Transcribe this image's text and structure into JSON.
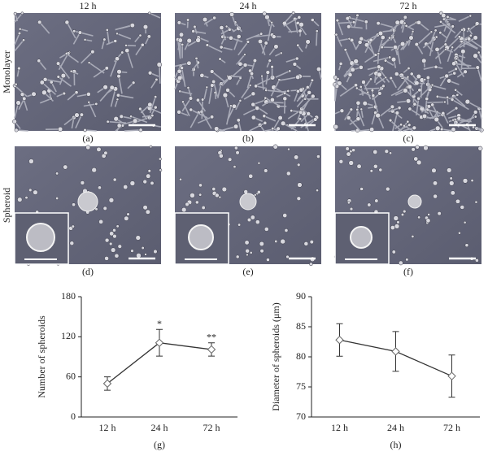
{
  "columns": [
    "12 h",
    "24 h",
    "72 h"
  ],
  "rows": [
    "Monolayer",
    "Spheroid"
  ],
  "panels": [
    "(a)",
    "(b)",
    "(c)",
    "(d)",
    "(e)",
    "(f)"
  ],
  "chart_data": [
    {
      "type": "line",
      "label": "(g)",
      "ylabel": "Number of spheroids",
      "categories": [
        "12 h",
        "24 h",
        "72 h"
      ],
      "values": [
        50,
        111,
        101
      ],
      "errors": [
        10,
        20,
        10
      ],
      "ylim": [
        0,
        180
      ],
      "yticks": [
        0,
        60,
        120,
        180
      ],
      "color": "#333333",
      "annotations": [
        {
          "text": "*",
          "x": "24 h"
        },
        {
          "text": "**",
          "x": "72 h"
        }
      ]
    },
    {
      "type": "line",
      "label": "(h)",
      "ylabel": "Diameter of spheroids (μm)",
      "categories": [
        "12 h",
        "24 h",
        "72 h"
      ],
      "values": [
        82.8,
        80.9,
        76.8
      ],
      "errors": [
        2.7,
        3.3,
        3.5
      ],
      "ylim": [
        70,
        90
      ],
      "yticks": [
        70,
        75,
        80,
        85,
        90
      ],
      "color": "#333333"
    }
  ]
}
